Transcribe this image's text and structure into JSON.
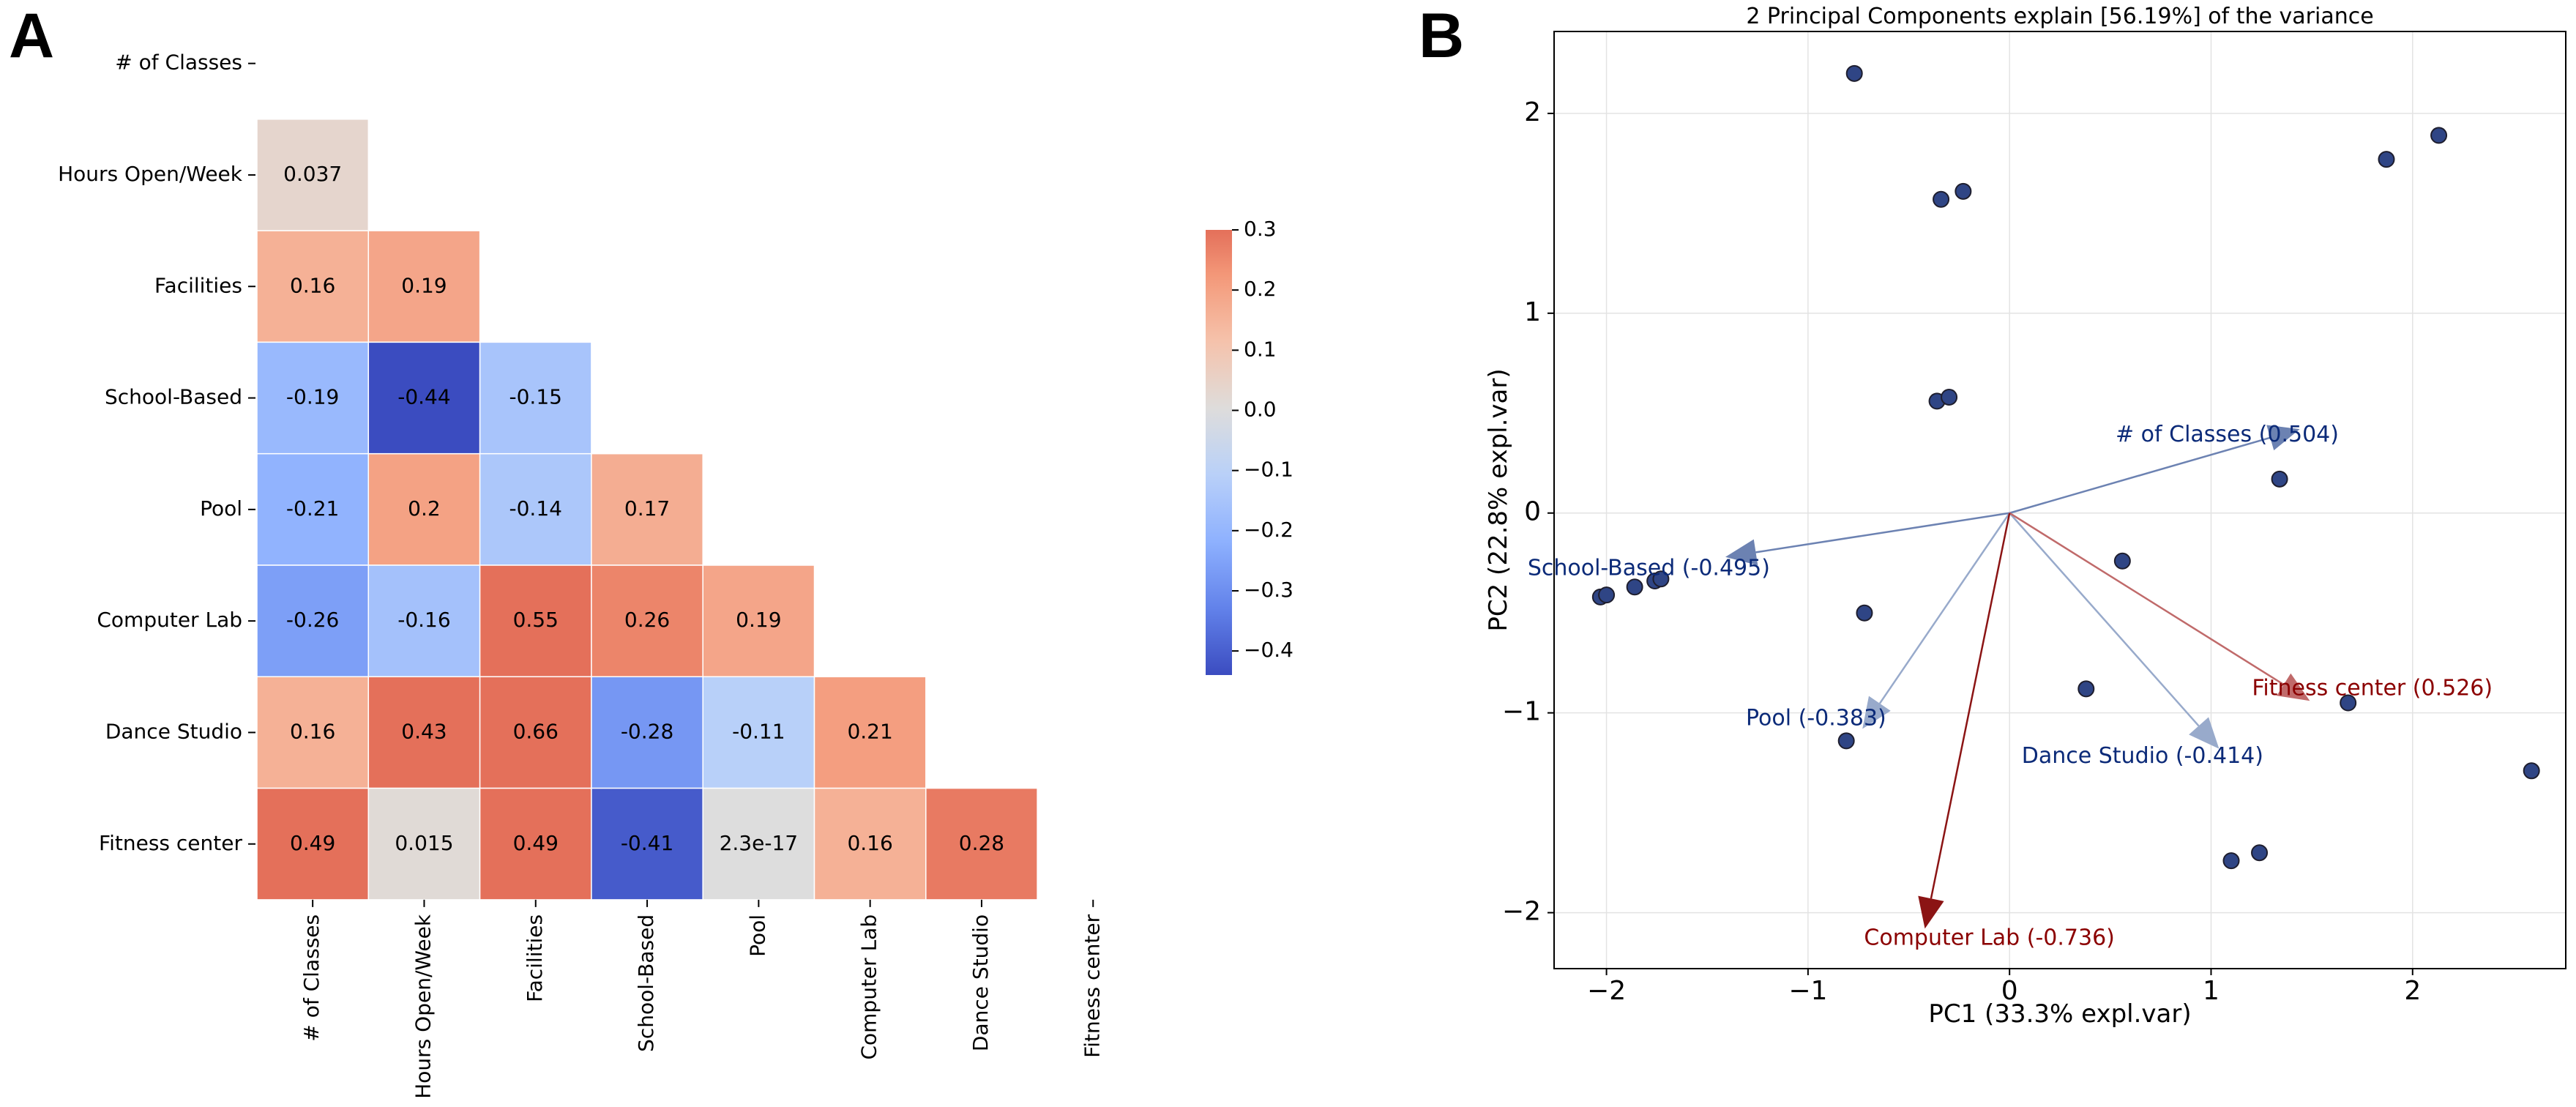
{
  "panels": {
    "a": "A",
    "b": "B"
  },
  "chart_data": [
    {
      "type": "heatmap",
      "row_labels": [
        "# of Classes",
        "Hours Open/Week",
        "Facilities",
        "School-Based",
        "Pool",
        "Computer Lab",
        "Dance Studio",
        "Fitness center"
      ],
      "col_labels": [
        "# of Classes",
        "Hours Open/Week",
        "Facilities",
        "School-Based",
        "Pool",
        "Computer Lab",
        "Dance Studio",
        "Fitness center"
      ],
      "mask": "upper triangle incl. diagonal",
      "values": [
        [],
        [
          0.037
        ],
        [
          0.16,
          0.19
        ],
        [
          -0.19,
          -0.44,
          -0.15
        ],
        [
          -0.21,
          0.2,
          -0.14,
          0.17
        ],
        [
          -0.26,
          -0.16,
          0.55,
          0.26,
          0.19
        ],
        [
          0.16,
          0.43,
          0.66,
          -0.28,
          -0.11,
          0.21
        ],
        [
          0.49,
          0.015,
          0.49,
          -0.41,
          2.3e-17,
          0.16,
          0.28
        ]
      ],
      "value_labels": [
        [],
        [
          "0.037"
        ],
        [
          "0.16",
          "0.19"
        ],
        [
          "-0.19",
          "-0.44",
          "-0.15"
        ],
        [
          "-0.21",
          "0.2",
          "-0.14",
          "0.17"
        ],
        [
          "-0.26",
          "-0.16",
          "0.55",
          "0.26",
          "0.19"
        ],
        [
          "0.16",
          "0.43",
          "0.66",
          "-0.28",
          "-0.11",
          "0.21"
        ],
        [
          "0.49",
          "0.015",
          "0.49",
          "-0.41",
          "2.3e-17",
          "0.16",
          "0.28"
        ]
      ],
      "colormap": "coolwarm",
      "vmin": -0.44,
      "vmax": 0.3,
      "center": 0,
      "colorbar_ticks": [
        0.3,
        0.2,
        0.1,
        0.0,
        -0.1,
        -0.2,
        -0.3,
        -0.4
      ],
      "colorbar_tick_labels": [
        "0.3",
        "0.2",
        "0.1",
        "0.0",
        "−0.1",
        "−0.2",
        "−0.3",
        "−0.4"
      ]
    },
    {
      "type": "scatter",
      "title": "2 Principal Components explain [56.19%] of the variance",
      "xlabel": "PC1 (33.3% expl.var)",
      "ylabel": "PC2 (22.8% expl.var)",
      "xlim": [
        -2.26,
        2.76
      ],
      "ylim": [
        -2.28,
        2.41
      ],
      "xticks": [
        -2,
        -1,
        0,
        1,
        2
      ],
      "xtick_labels": [
        "−2",
        "−1",
        "0",
        "1",
        "2"
      ],
      "yticks": [
        2,
        1,
        0,
        -1,
        -2
      ],
      "ytick_labels": [
        "2",
        "1",
        "0",
        "−1",
        "−2"
      ],
      "grid": true,
      "point_color": "#2f4585",
      "points": [
        [
          -0.77,
          2.2
        ],
        [
          -0.34,
          1.57
        ],
        [
          -0.23,
          1.61
        ],
        [
          1.87,
          1.77
        ],
        [
          2.13,
          1.89
        ],
        [
          -0.36,
          0.56
        ],
        [
          -0.3,
          0.58
        ],
        [
          1.34,
          0.17
        ],
        [
          0.56,
          -0.24
        ],
        [
          -2.03,
          -0.42
        ],
        [
          -2.0,
          -0.41
        ],
        [
          -1.86,
          -0.37
        ],
        [
          -1.76,
          -0.34
        ],
        [
          -1.73,
          -0.33
        ],
        [
          -0.72,
          -0.5
        ],
        [
          0.38,
          -0.88
        ],
        [
          1.68,
          -0.95
        ],
        [
          -0.81,
          -1.14
        ],
        [
          2.59,
          -1.29
        ],
        [
          1.1,
          -1.74
        ],
        [
          1.24,
          -1.7
        ]
      ],
      "loadings": [
        {
          "name": "# of Classes",
          "label": "# of Classes (0.504)",
          "x": 1.44,
          "y": 0.42,
          "arrow_color": "#6c82b2",
          "text_color": "#0b2a78"
        },
        {
          "name": "School-Based",
          "label": "School-Based (-0.495)",
          "x": -1.41,
          "y": -0.22,
          "arrow_color": "#6c82b2",
          "text_color": "#0b2a78"
        },
        {
          "name": "Pool",
          "label": "Pool (-0.383)",
          "x": -0.73,
          "y": -1.08,
          "arrow_color": "#98aacb",
          "text_color": "#0b2a78"
        },
        {
          "name": "Dance Studio",
          "label": "Dance Studio (-0.414)",
          "x": 1.04,
          "y": -1.18,
          "arrow_color": "#98aacb",
          "text_color": "#0b2a78"
        },
        {
          "name": "Fitness center",
          "label": "Fitness center (0.526)",
          "x": 1.49,
          "y": -0.94,
          "arrow_color": "#c06a6a",
          "text_color": "#8b0000"
        },
        {
          "name": "Computer Lab",
          "label": "Computer Lab (-0.736)",
          "x": -0.42,
          "y": -2.08,
          "arrow_color": "#8b1414",
          "text_color": "#8b0000"
        }
      ]
    }
  ]
}
